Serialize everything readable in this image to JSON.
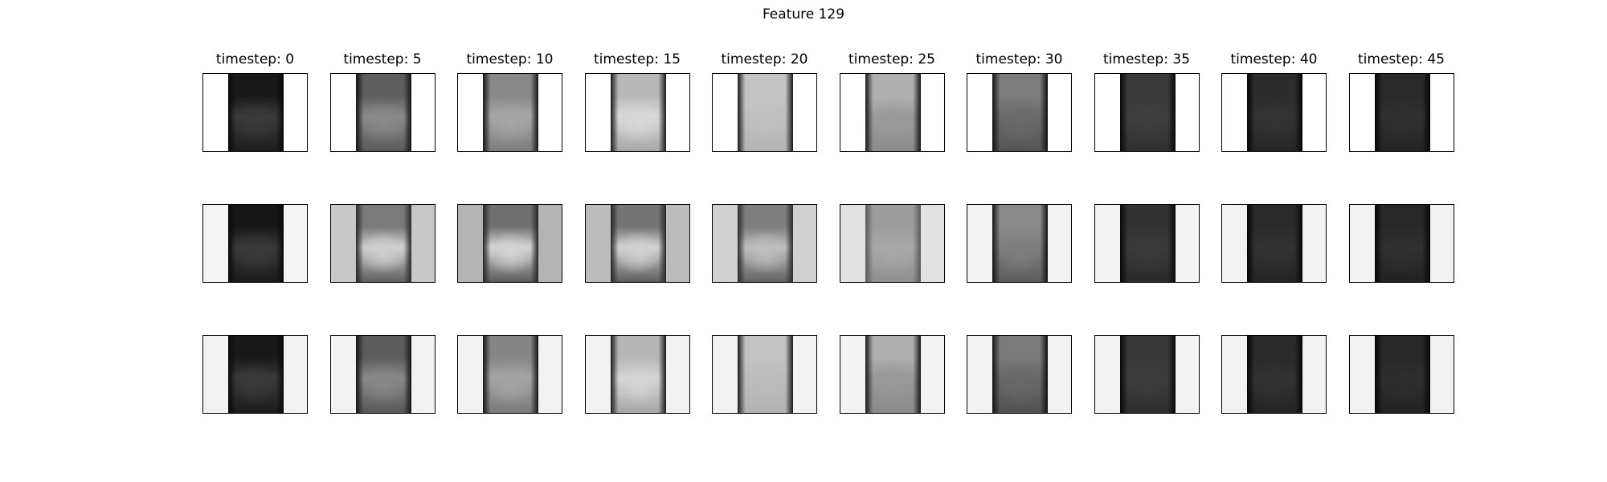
{
  "chart_data": {
    "type": "image-grid",
    "title": "Feature 129",
    "columns": [
      {
        "label": "timestep: 0"
      },
      {
        "label": "timestep: 5"
      },
      {
        "label": "timestep: 10"
      },
      {
        "label": "timestep: 15"
      },
      {
        "label": "timestep: 20"
      },
      {
        "label": "timestep: 25"
      },
      {
        "label": "timestep: 30"
      },
      {
        "label": "timestep: 35"
      },
      {
        "label": "timestep: 40"
      },
      {
        "label": "timestep: 45"
      }
    ],
    "rows": 3,
    "colormap": "gray",
    "panels": [
      [
        {
          "bg": "#ffffff",
          "top": "#181818",
          "mid": "#3a3a3a",
          "bot": "#1c1c1c",
          "edge": "#0a0a0a"
        },
        {
          "bg": "#ffffff",
          "top": "#5e5e5e",
          "mid": "#8a8a8a",
          "bot": "#5a5a5a",
          "edge": "#141414"
        },
        {
          "bg": "#ffffff",
          "top": "#888888",
          "mid": "#a6a6a6",
          "bot": "#7c7c7c",
          "edge": "#161616"
        },
        {
          "bg": "#ffffff",
          "top": "#b8b8b8",
          "mid": "#d8d8d8",
          "bot": "#a8a8a8",
          "edge": "#1a1a1a"
        },
        {
          "bg": "#ffffff",
          "top": "#c4c4c4",
          "mid": "#bfbfbf",
          "bot": "#b4b4b4",
          "edge": "#1a1a1a"
        },
        {
          "bg": "#ffffff",
          "top": "#b0b0b0",
          "mid": "#9a9a9a",
          "bot": "#8c8c8c",
          "edge": "#181818"
        },
        {
          "bg": "#ffffff",
          "top": "#7c7c7c",
          "mid": "#6a6a6a",
          "bot": "#545454",
          "edge": "#121212"
        },
        {
          "bg": "#ffffff",
          "top": "#3a3a3a",
          "mid": "#3e3e3e",
          "bot": "#303030",
          "edge": "#080808"
        },
        {
          "bg": "#ffffff",
          "top": "#2c2c2c",
          "mid": "#333333",
          "bot": "#262626",
          "edge": "#060606"
        },
        {
          "bg": "#ffffff",
          "top": "#2a2a2a",
          "mid": "#303030",
          "bot": "#242424",
          "edge": "#060606"
        }
      ],
      [
        {
          "bg": "#f4f4f4",
          "top": "#161616",
          "mid": "#3a3a3a",
          "bot": "#1a1a1a",
          "edge": "#0a0a0a"
        },
        {
          "bg": "#c8c8c8",
          "top": "#7a7a7a",
          "mid": "#cfcfcf",
          "bot": "#5e5e5e",
          "edge": "#2a2a2a"
        },
        {
          "bg": "#b4b4b4",
          "top": "#707070",
          "mid": "#d4d4d4",
          "bot": "#5a5a5a",
          "edge": "#262626"
        },
        {
          "bg": "#bcbcbc",
          "top": "#747474",
          "mid": "#d2d2d2",
          "bot": "#5c5c5c",
          "edge": "#282828"
        },
        {
          "bg": "#d0d0d0",
          "top": "#7e7e7e",
          "mid": "#bebebe",
          "bot": "#626262",
          "edge": "#2c2c2c"
        },
        {
          "bg": "#e2e2e2",
          "top": "#9c9c9c",
          "mid": "#a8a8a8",
          "bot": "#8e8e8e",
          "edge": "#5a5a5a"
        },
        {
          "bg": "#f2f2f2",
          "top": "#8a8a8a",
          "mid": "#7e7e7e",
          "bot": "#5c5c5c",
          "edge": "#141414"
        },
        {
          "bg": "#f2f2f2",
          "top": "#323232",
          "mid": "#3a3a3a",
          "bot": "#2a2a2a",
          "edge": "#080808"
        },
        {
          "bg": "#f2f2f2",
          "top": "#2a2a2a",
          "mid": "#323232",
          "bot": "#242424",
          "edge": "#060606"
        },
        {
          "bg": "#f2f2f2",
          "top": "#282828",
          "mid": "#303030",
          "bot": "#222222",
          "edge": "#060606"
        }
      ],
      [
        {
          "bg": "#f2f2f2",
          "top": "#181818",
          "mid": "#3a3a3a",
          "bot": "#1c1c1c",
          "edge": "#0a0a0a"
        },
        {
          "bg": "#f2f2f2",
          "top": "#5c5c5c",
          "mid": "#888888",
          "bot": "#585858",
          "edge": "#141414"
        },
        {
          "bg": "#f2f2f2",
          "top": "#868686",
          "mid": "#a4a4a4",
          "bot": "#7a7a7a",
          "edge": "#161616"
        },
        {
          "bg": "#f2f2f2",
          "top": "#b6b6b6",
          "mid": "#d4d4d4",
          "bot": "#a6a6a6",
          "edge": "#1a1a1a"
        },
        {
          "bg": "#f2f2f2",
          "top": "#c2c2c2",
          "mid": "#bcbcbc",
          "bot": "#b2b2b2",
          "edge": "#1a1a1a"
        },
        {
          "bg": "#f2f2f2",
          "top": "#aeaeae",
          "mid": "#989898",
          "bot": "#8a8a8a",
          "edge": "#181818"
        },
        {
          "bg": "#f2f2f2",
          "top": "#7a7a7a",
          "mid": "#686868",
          "bot": "#525252",
          "edge": "#121212"
        },
        {
          "bg": "#f2f2f2",
          "top": "#383838",
          "mid": "#3c3c3c",
          "bot": "#2e2e2e",
          "edge": "#080808"
        },
        {
          "bg": "#f2f2f2",
          "top": "#2a2a2a",
          "mid": "#323232",
          "bot": "#242424",
          "edge": "#060606"
        },
        {
          "bg": "#f2f2f2",
          "top": "#282828",
          "mid": "#2e2e2e",
          "bot": "#222222",
          "edge": "#060606"
        }
      ]
    ]
  }
}
